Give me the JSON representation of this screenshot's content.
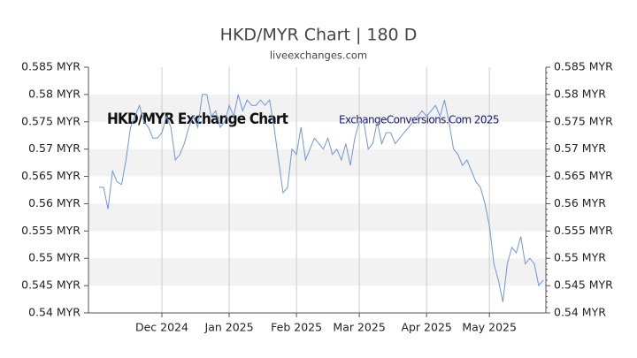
{
  "chart_data": {
    "type": "line",
    "title": "HKD/MYR Chart | 180 D",
    "subtitle": "liveexchanges.com",
    "annotations": [
      "HKD/MYR Exchange Chart",
      "ExchangeConversions.Com 2025"
    ],
    "categories": [
      null,
      null,
      null,
      null,
      null,
      null,
      null,
      null,
      null,
      null,
      null,
      null,
      null,
      null,
      "Dec 2024",
      null,
      null,
      null,
      null,
      null,
      null,
      null,
      null,
      null,
      null,
      null,
      null,
      null,
      null,
      "Jan 2025",
      null,
      null,
      null,
      null,
      null,
      null,
      null,
      null,
      null,
      null,
      null,
      null,
      null,
      null,
      "Feb 2025",
      null,
      null,
      null,
      null,
      null,
      null,
      null,
      null,
      null,
      null,
      null,
      null,
      null,
      "Mar 2025",
      null,
      null,
      null,
      null,
      null,
      null,
      null,
      null,
      null,
      null,
      null,
      null,
      null,
      null,
      "Apr 2025",
      null,
      null,
      null,
      null,
      null,
      null,
      null,
      null,
      null,
      null,
      null,
      null,
      null,
      "May 2025",
      null,
      null,
      null,
      null,
      null,
      null,
      null,
      null,
      null,
      null,
      null,
      null
    ],
    "series": [
      {
        "name": "HKD/MYR",
        "color": "#7096d9",
        "values": [
          0.563,
          0.563,
          0.559,
          0.566,
          0.564,
          0.5635,
          0.568,
          0.574,
          0.576,
          0.578,
          0.575,
          0.574,
          0.572,
          0.572,
          0.573,
          0.576,
          0.574,
          0.568,
          0.569,
          0.571,
          0.574,
          0.576,
          0.574,
          0.58,
          0.58,
          0.576,
          0.577,
          0.574,
          0.575,
          0.578,
          0.576,
          0.58,
          0.577,
          0.579,
          0.578,
          0.578,
          0.579,
          0.578,
          0.579,
          0.574,
          0.568,
          0.562,
          0.563,
          0.57,
          0.569,
          0.574,
          0.568,
          0.57,
          0.572,
          0.571,
          0.57,
          0.572,
          0.569,
          0.57,
          0.568,
          0.571,
          0.567,
          0.572,
          0.575,
          0.575,
          0.57,
          0.571,
          0.575,
          0.571,
          0.573,
          0.573,
          0.571,
          0.572,
          0.573,
          0.574,
          0.575,
          0.576,
          0.577,
          0.576,
          0.577,
          0.578,
          0.576,
          0.579,
          0.575,
          0.57,
          0.569,
          0.567,
          0.568,
          0.566,
          0.564,
          0.563,
          0.56,
          0.556,
          0.549,
          0.546,
          0.542,
          0.549,
          0.552,
          0.551,
          0.554,
          0.549,
          0.55,
          0.549,
          0.545,
          0.546
        ]
      }
    ],
    "ylim": [
      0.54,
      0.585
    ],
    "yticks": [
      {
        "value": 0.54,
        "label": "0.54 MYR"
      },
      {
        "value": 0.545,
        "label": "0.545 MYR"
      },
      {
        "value": 0.55,
        "label": "0.55 MYR"
      },
      {
        "value": 0.555,
        "label": "0.555 MYR"
      },
      {
        "value": 0.56,
        "label": "0.56 MYR"
      },
      {
        "value": 0.565,
        "label": "0.565 MYR"
      },
      {
        "value": 0.57,
        "label": "0.57 MYR"
      },
      {
        "value": 0.575,
        "label": "0.575 MYR"
      },
      {
        "value": 0.58,
        "label": "0.58 MYR"
      },
      {
        "value": 0.585,
        "label": "0.585 MYR"
      }
    ],
    "band_color": "#f2f2f2"
  }
}
